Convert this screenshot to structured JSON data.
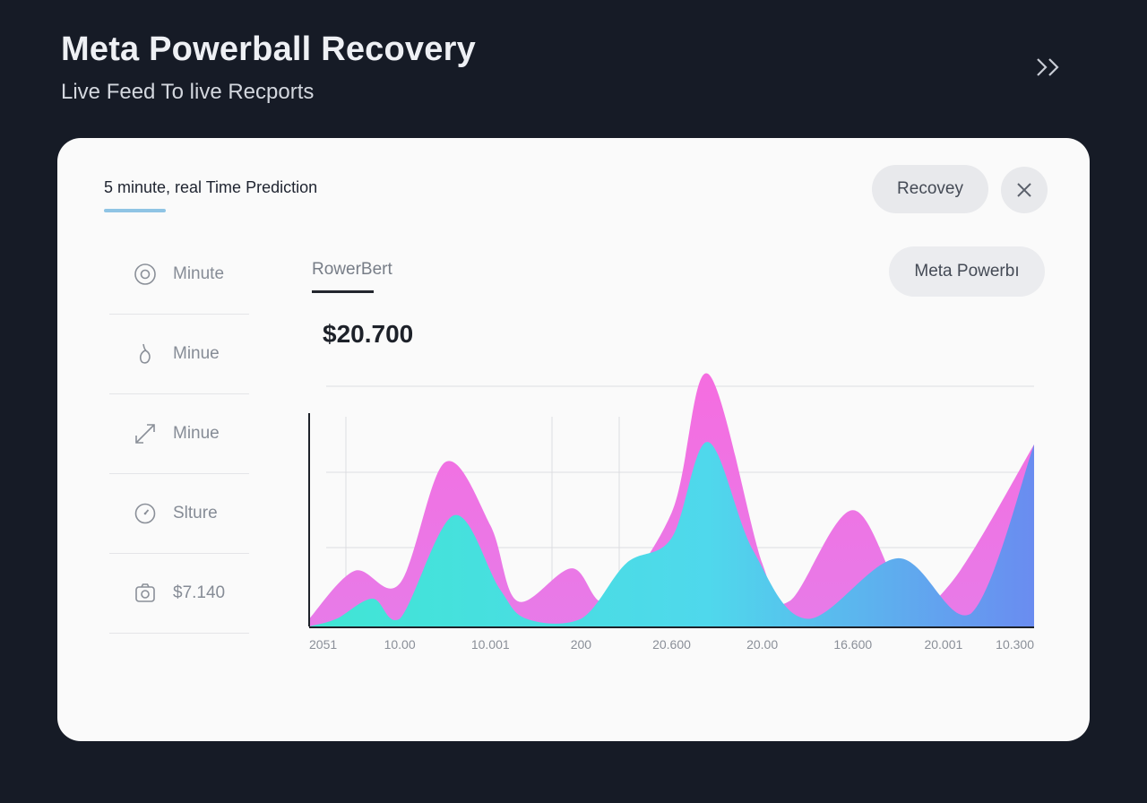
{
  "header": {
    "title": "Meta Powerball Recovery",
    "subtitle": "Live Feed To live Recports"
  },
  "card": {
    "tab_label": "5 minute, real Time Prediction",
    "recovery_button": "Recovey",
    "meta_button": "Meta Powerbı",
    "series_label": "RowerBert",
    "big_value": "$20.700"
  },
  "sidebar": {
    "items": [
      {
        "icon": "target-icon",
        "label": "Minute"
      },
      {
        "icon": "droplet-icon",
        "label": "Minue"
      },
      {
        "icon": "expand-arrow-icon",
        "label": "Minue"
      },
      {
        "icon": "clock-icon",
        "label": "Slture"
      },
      {
        "icon": "camera-icon",
        "label": "$7.140"
      }
    ]
  },
  "colors": {
    "background": "#161b26",
    "card": "#fafafa",
    "pink_series": "#f06fe0",
    "cyan_series": "#3fe3df",
    "blue_series": "#6a8cf0",
    "tab_accent": "#8fc4e4"
  },
  "chart_data": {
    "type": "area",
    "categories": [
      "2051",
      "10.00",
      "10.001",
      "200",
      "20.600",
      "20.00",
      "16.600",
      "20.001",
      "10.300"
    ],
    "ylim": [
      0,
      100
    ],
    "series": [
      {
        "name": "pink",
        "points": [
          [
            0,
            3
          ],
          [
            0.5,
            22
          ],
          [
            1,
            17
          ],
          [
            1.5,
            65
          ],
          [
            2,
            40
          ],
          [
            2.3,
            10
          ],
          [
            2.9,
            23
          ],
          [
            3.3,
            10
          ],
          [
            4,
            45
          ],
          [
            4.4,
            100
          ],
          [
            5,
            25
          ],
          [
            5.3,
            10
          ],
          [
            6,
            46
          ],
          [
            6.6,
            10
          ],
          [
            7.1,
            18
          ],
          [
            8,
            72
          ]
        ]
      },
      {
        "name": "cyan",
        "points": [
          [
            0,
            0
          ],
          [
            0.3,
            3
          ],
          [
            0.7,
            11
          ],
          [
            1,
            3
          ],
          [
            1.6,
            44
          ],
          [
            2.1,
            15
          ],
          [
            2.4,
            3
          ],
          [
            3,
            3
          ],
          [
            3.5,
            25
          ],
          [
            4,
            35
          ],
          [
            4.4,
            73
          ],
          [
            4.9,
            30
          ],
          [
            5.5,
            3
          ],
          [
            6.5,
            27
          ],
          [
            7.3,
            5
          ],
          [
            8,
            72
          ]
        ]
      }
    ]
  }
}
